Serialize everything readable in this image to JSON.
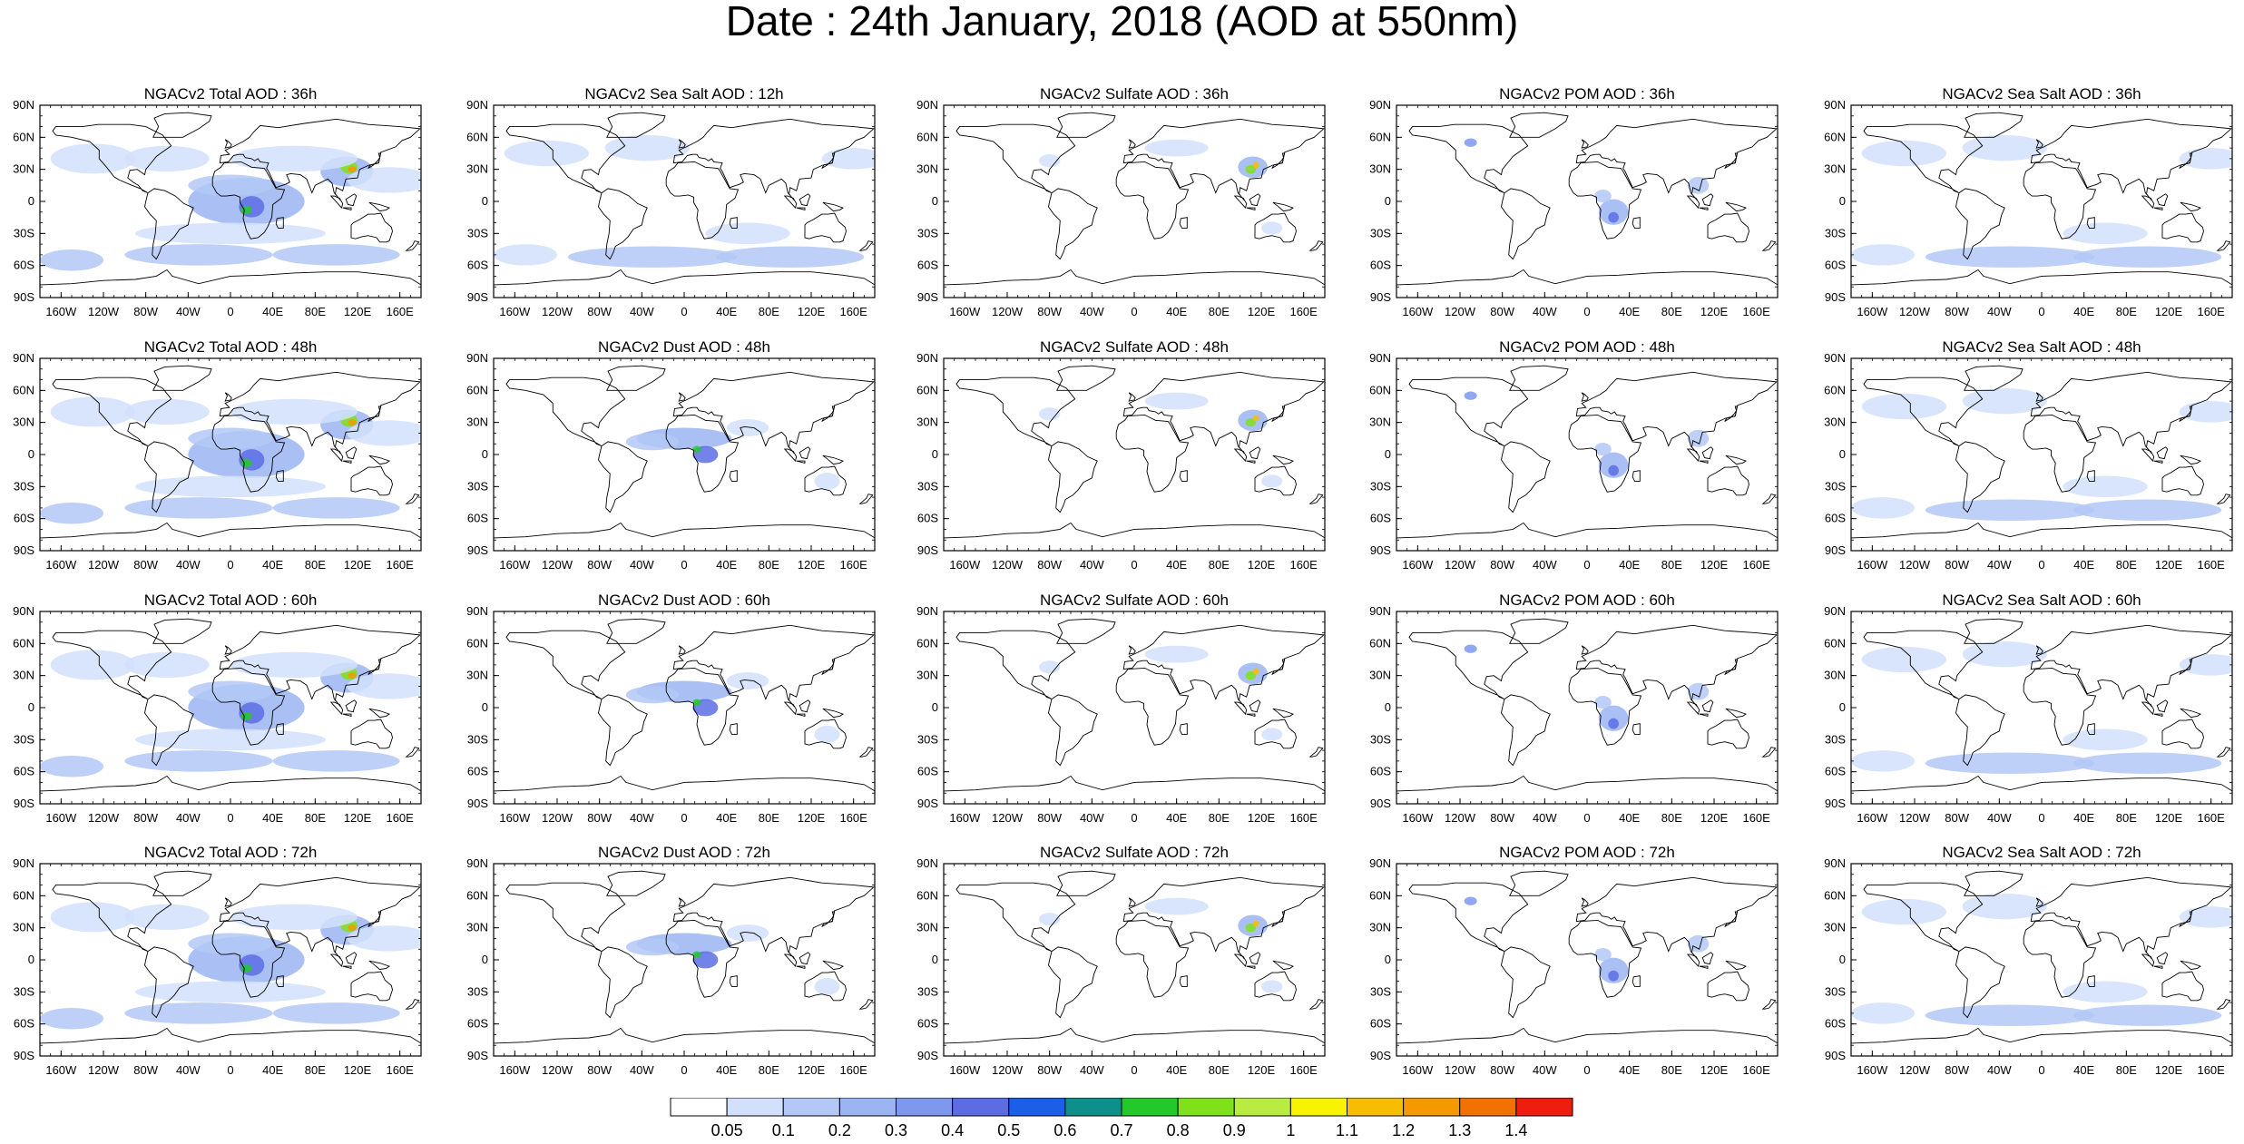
{
  "title": "Date : 24th January, 2018 (AOD at 550nm)",
  "rows": [
    [
      "NGACv2 Total AOD : 36h",
      "NGACv2 Sea Salt  AOD : 12h",
      "NGACv2 Sulfate AOD : 36h",
      "NGACv2 POM AOD : 36h",
      "NGACv2 Sea Salt AOD : 36h"
    ],
    [
      "NGACv2 Total AOD : 48h",
      "NGACv2 Dust AOD : 48h",
      "NGACv2 Sulfate AOD : 48h",
      "NGACv2 POM AOD : 48h",
      "NGACv2 Sea Salt AOD : 48h"
    ],
    [
      "NGACv2 Total AOD : 60h",
      "NGACv2 Dust AOD : 60h",
      "NGACv2 Sulfate AOD : 60h",
      "NGACv2 POM AOD : 60h",
      "NGACv2 Sea Salt AOD : 60h"
    ],
    [
      "NGACv2 Total AOD : 72h",
      "NGACv2 Dust AOD : 72h",
      "NGACv2 Sulfate AOD : 72h",
      "NGACv2 POM AOD : 72h",
      "NGACv2 Sea Salt  AOD : 72h"
    ]
  ],
  "lat_labels": [
    "90N",
    "60N",
    "30N",
    "0",
    "30S",
    "60S",
    "90S"
  ],
  "lon_labels": [
    "160W",
    "120W",
    "80W",
    "40W",
    "0",
    "40E",
    "80E",
    "120E",
    "160E"
  ],
  "colorbar": {
    "levels": [
      "0.05",
      "0.1",
      "0.2",
      "0.3",
      "0.4",
      "0.5",
      "0.6",
      "0.7",
      "0.8",
      "0.9",
      "1",
      "1.1",
      "1.2",
      "1.3",
      "1.4"
    ],
    "colors": [
      "#ffffff",
      "#d2e0fb",
      "#b3c8f6",
      "#9bb4f2",
      "#7e98ee",
      "#5c6de4",
      "#1b5ee8",
      "#0e8f8c",
      "#23c92b",
      "#7fe11a",
      "#b9ec43",
      "#f8f300",
      "#f6be00",
      "#f49a00",
      "#f27200",
      "#ef1c10"
    ]
  },
  "aerosol_types": {
    "total": "#9bb4f2",
    "seasalt": "#b3c8f6",
    "dust": "#7e98ee",
    "sulfate": "#b3c8f6",
    "pom": "#b3c8f6"
  }
}
